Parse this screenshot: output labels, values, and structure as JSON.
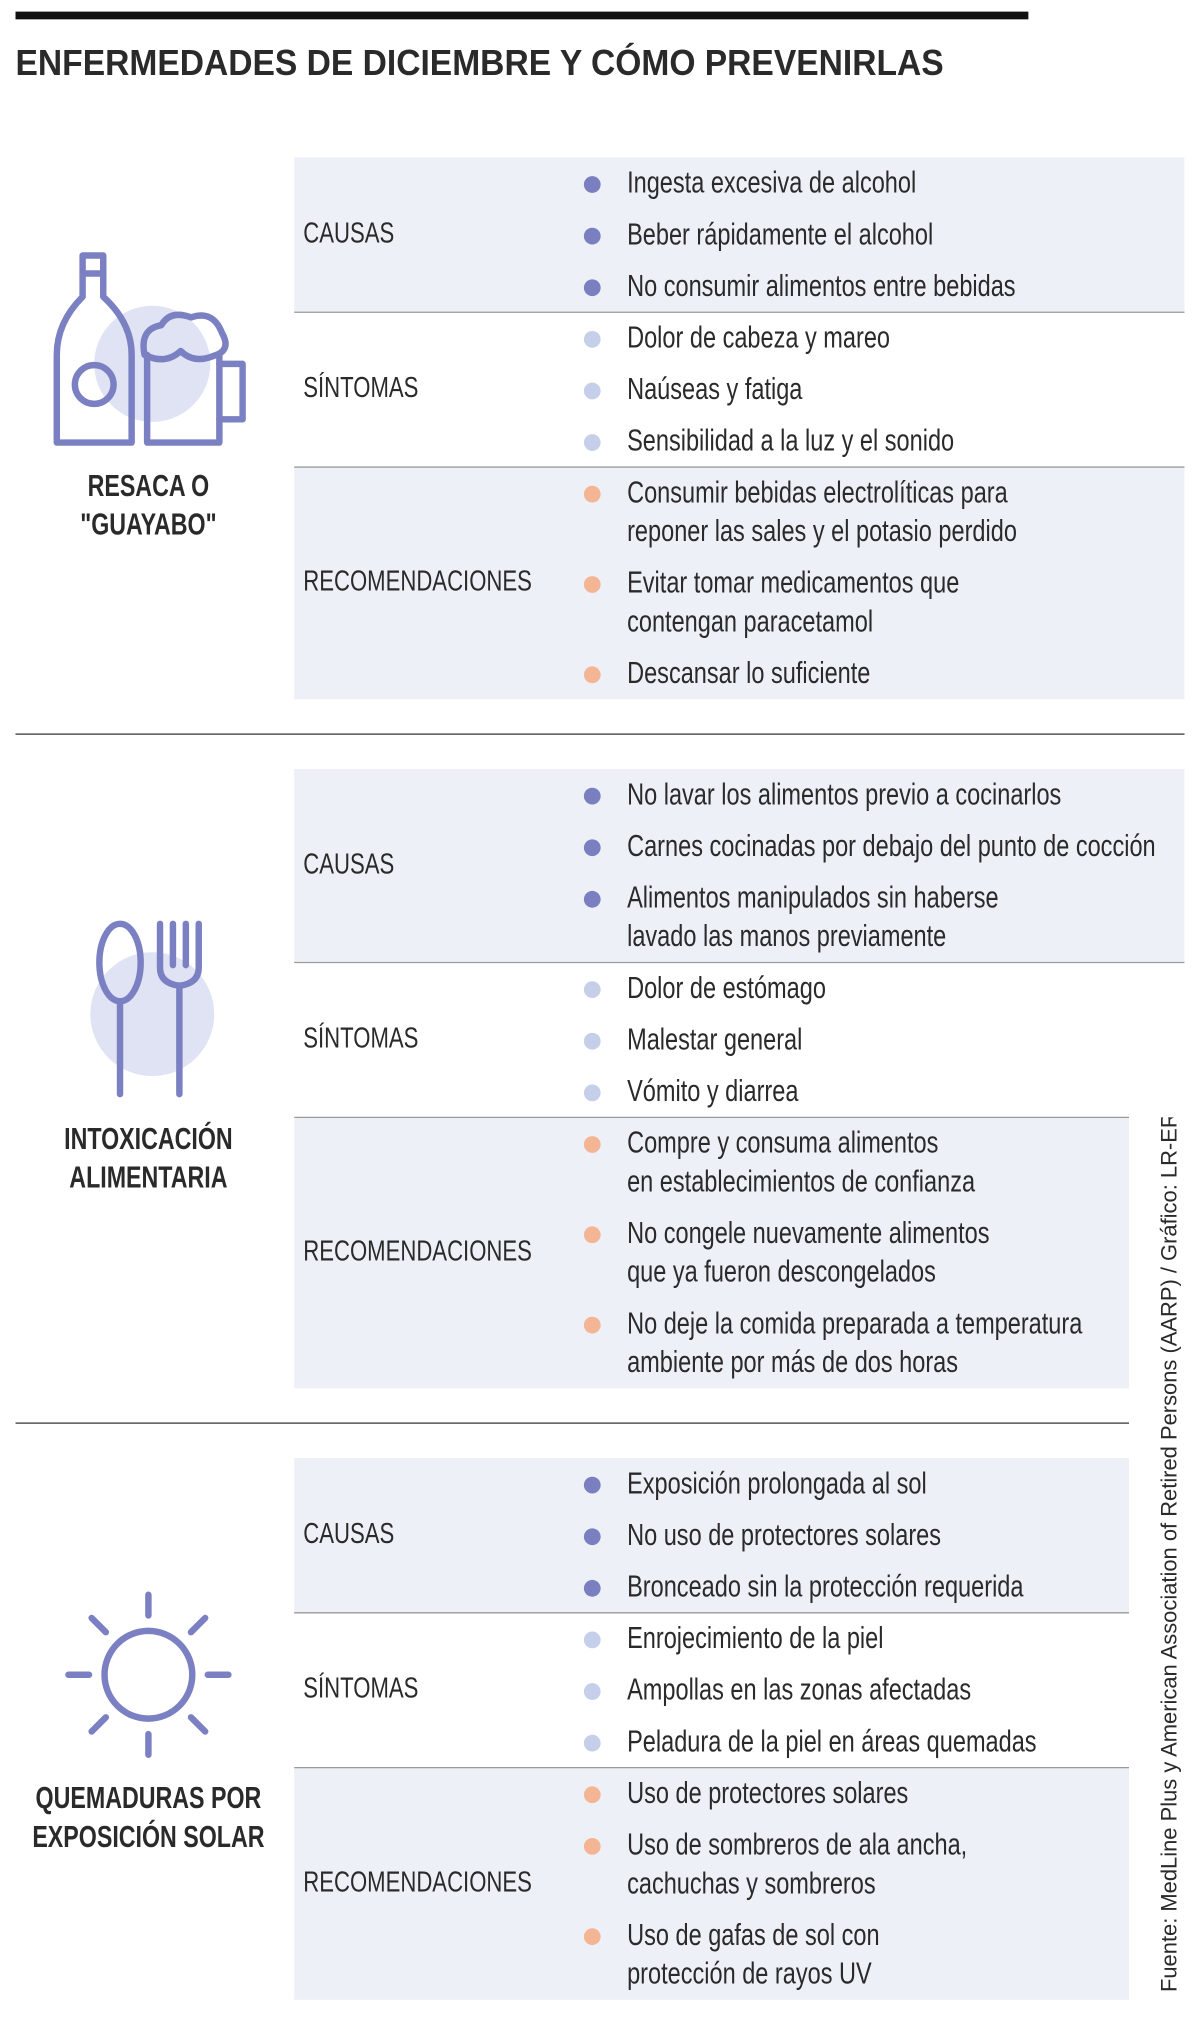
{
  "header": {
    "title": "ENFERMEDADES DE DICIEMBRE Y CÓMO PREVENIRLAS"
  },
  "sections": [
    {
      "name": [
        "RESACA O",
        "\"GUAYABO\""
      ],
      "groups": [
        {
          "label": "CAUSAS",
          "items": [
            [
              "Ingesta excesiva de alcohol"
            ],
            [
              "Beber rápidamente el alcohol"
            ],
            [
              "No consumir alimentos entre bebidas"
            ]
          ]
        },
        {
          "label": "SÍNTOMAS",
          "items": [
            [
              "Dolor de cabeza y mareo"
            ],
            [
              "Naúseas y fatiga"
            ],
            [
              "Sensibilidad a la luz y el sonido"
            ]
          ]
        },
        {
          "label": "RECOMENDACIONES",
          "items": [
            [
              "Consumir bebidas electrolíticas para",
              "reponer las sales y el potasio perdido"
            ],
            [
              "Evitar tomar medicamentos que",
              "contengan paracetamol"
            ],
            [
              "Descansar lo suficiente"
            ]
          ]
        }
      ]
    },
    {
      "name": [
        "INTOXICACIÓN",
        "ALIMENTARIA"
      ],
      "groups": [
        {
          "label": "CAUSAS",
          "items": [
            [
              "No lavar los alimentos previo a cocinarlos"
            ],
            [
              "Carnes cocinadas por debajo del punto de cocción"
            ],
            [
              "Alimentos manipulados sin haberse",
              "lavado las manos previamente"
            ]
          ]
        },
        {
          "label": "SÍNTOMAS",
          "items": [
            [
              "Dolor de estómago"
            ],
            [
              "Malestar general"
            ],
            [
              "Vómito y diarrea"
            ]
          ]
        },
        {
          "label": "RECOMENDACIONES",
          "items": [
            [
              "Compre y consuma alimentos",
              "en establecimientos de confianza"
            ],
            [
              "No congele nuevamente alimentos",
              "que ya fueron descongelados"
            ],
            [
              "No deje la comida preparada a temperatura",
              "ambiente por más de dos horas"
            ]
          ]
        }
      ]
    },
    {
      "name": [
        "QUEMADURAS POR",
        "EXPOSICIÓN SOLAR"
      ],
      "groups": [
        {
          "label": "CAUSAS",
          "items": [
            [
              "Exposición prolongada al sol"
            ],
            [
              "No uso de protectores solares"
            ],
            [
              "Bronceado sin la protección requerida"
            ]
          ]
        },
        {
          "label": "SÍNTOMAS",
          "items": [
            [
              "Enrojecimiento de la piel"
            ],
            [
              "Ampollas en las zonas afectadas"
            ],
            [
              "Peladura de la piel en áreas quemadas"
            ]
          ]
        },
        {
          "label": "RECOMENDACIONES",
          "items": [
            [
              "Uso de protectores solares"
            ],
            [
              "Uso de sombreros de ala ancha,",
              "cachuchas y sombreros"
            ],
            [
              "Uso de gafas de sol con",
              "protección de rayos UV"
            ]
          ]
        }
      ]
    }
  ],
  "source": "Fuente: MedLine Plus y American Association of Retired Persons (AARP) / Gráfico: LR-ER"
}
